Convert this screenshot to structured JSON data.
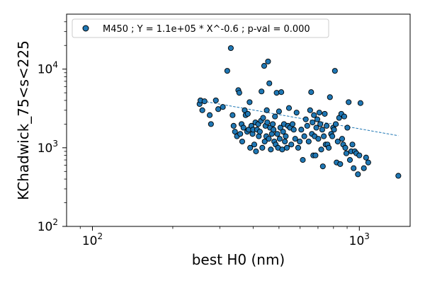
{
  "chart_data": {
    "type": "scatter",
    "title": "",
    "xlabel": "best H0 (nm)",
    "ylabel": "KChadwick_75<s<225",
    "xscale": "log",
    "yscale": "log",
    "xlim": [
      80,
      1550
    ],
    "ylim": [
      100,
      50000
    ],
    "x_ticks": [
      {
        "value": 100,
        "base": "10",
        "exp": "2"
      },
      {
        "value": 1000,
        "base": "10",
        "exp": "3"
      }
    ],
    "y_ticks": [
      {
        "value": 100,
        "base": "10",
        "exp": "2"
      },
      {
        "value": 1000,
        "base": "10",
        "exp": "3"
      },
      {
        "value": 10000,
        "base": "10",
        "exp": "4"
      }
    ],
    "grid": false,
    "legend_position": "top-left",
    "marker_color": "#1f77b4",
    "fit_color": "#1f77b4",
    "series": [
      {
        "name": "M450 ; Y = 1.1e+05 * X^-0.6 ; p-val = 0.000",
        "fit": {
          "a": 110000,
          "b": -0.6,
          "x_range": [
            250,
            1400
          ]
        },
        "points": [
          [
            252,
            3600
          ],
          [
            254,
            4000
          ],
          [
            263,
            3900
          ],
          [
            258,
            3000
          ],
          [
            275,
            2600
          ],
          [
            278,
            2000
          ],
          [
            290,
            4000
          ],
          [
            296,
            3100
          ],
          [
            308,
            3300
          ],
          [
            320,
            9500
          ],
          [
            330,
            18500
          ],
          [
            335,
            2600
          ],
          [
            338,
            1900
          ],
          [
            342,
            1600
          ],
          [
            348,
            1400
          ],
          [
            352,
            5400
          ],
          [
            355,
            5000
          ],
          [
            358,
            1500
          ],
          [
            362,
            2000
          ],
          [
            364,
            1200
          ],
          [
            368,
            1800
          ],
          [
            372,
            3000
          ],
          [
            375,
            2600
          ],
          [
            380,
            1600
          ],
          [
            382,
            2700
          ],
          [
            385,
            1700
          ],
          [
            388,
            3800
          ],
          [
            390,
            1000
          ],
          [
            394,
            1900
          ],
          [
            398,
            1500
          ],
          [
            400,
            1700
          ],
          [
            404,
            1100
          ],
          [
            408,
            2100
          ],
          [
            410,
            900
          ],
          [
            414,
            1700
          ],
          [
            418,
            2000
          ],
          [
            420,
            1400
          ],
          [
            424,
            1600
          ],
          [
            428,
            2200
          ],
          [
            430,
            5200
          ],
          [
            433,
            1000
          ],
          [
            436,
            2400
          ],
          [
            440,
            11000
          ],
          [
            442,
            1200
          ],
          [
            445,
            1900
          ],
          [
            448,
            1400
          ],
          [
            450,
            3000
          ],
          [
            452,
            2100
          ],
          [
            455,
            12500
          ],
          [
            458,
            1300
          ],
          [
            460,
            6600
          ],
          [
            463,
            1800
          ],
          [
            466,
            950
          ],
          [
            470,
            1500
          ],
          [
            474,
            2000
          ],
          [
            477,
            1700
          ],
          [
            480,
            1200
          ],
          [
            483,
            2500
          ],
          [
            486,
            1100
          ],
          [
            490,
            5000
          ],
          [
            493,
            1500
          ],
          [
            496,
            1000
          ],
          [
            500,
            2900
          ],
          [
            503,
            1300
          ],
          [
            506,
            1800
          ],
          [
            510,
            5100
          ],
          [
            514,
            950
          ],
          [
            518,
            1600
          ],
          [
            522,
            2000
          ],
          [
            526,
            1200
          ],
          [
            530,
            1400
          ],
          [
            535,
            1000
          ],
          [
            540,
            1900
          ],
          [
            545,
            3200
          ],
          [
            550,
            1800
          ],
          [
            556,
            1100
          ],
          [
            562,
            2000
          ],
          [
            568,
            1700
          ],
          [
            575,
            1300
          ],
          [
            582,
            2800
          ],
          [
            590,
            1000
          ],
          [
            598,
            1200
          ],
          [
            606,
            1700
          ],
          [
            614,
            700
          ],
          [
            622,
            1400
          ],
          [
            630,
            2300
          ],
          [
            638,
            1900
          ],
          [
            646,
            1200
          ],
          [
            654,
            3000
          ],
          [
            660,
            5100
          ],
          [
            664,
            1500
          ],
          [
            668,
            2100
          ],
          [
            672,
            800
          ],
          [
            676,
            2600
          ],
          [
            680,
            1400
          ],
          [
            685,
            800
          ],
          [
            690,
            1800
          ],
          [
            696,
            2300
          ],
          [
            702,
            1300
          ],
          [
            708,
            2800
          ],
          [
            714,
            2000
          ],
          [
            720,
            950
          ],
          [
            726,
            1700
          ],
          [
            730,
            580
          ],
          [
            736,
            1400
          ],
          [
            742,
            2700
          ],
          [
            748,
            1100
          ],
          [
            754,
            1900
          ],
          [
            760,
            1100
          ],
          [
            768,
            1000
          ],
          [
            776,
            4400
          ],
          [
            784,
            1500
          ],
          [
            792,
            1400
          ],
          [
            798,
            1800
          ],
          [
            804,
            1700
          ],
          [
            810,
            9500
          ],
          [
            816,
            2000
          ],
          [
            822,
            650
          ],
          [
            830,
            1200
          ],
          [
            840,
            2400
          ],
          [
            848,
            620
          ],
          [
            856,
            2700
          ],
          [
            862,
            1300
          ],
          [
            870,
            1100
          ],
          [
            878,
            2500
          ],
          [
            886,
            1000
          ],
          [
            894,
            850
          ],
          [
            902,
            1800
          ],
          [
            912,
            3800
          ],
          [
            922,
            700
          ],
          [
            932,
            900
          ],
          [
            942,
            1100
          ],
          [
            952,
            550
          ],
          [
            962,
            900
          ],
          [
            975,
            850
          ],
          [
            988,
            460
          ],
          [
            1000,
            800
          ],
          [
            1010,
            3700
          ],
          [
            1040,
            550
          ],
          [
            1060,
            750
          ],
          [
            1080,
            650
          ],
          [
            1400,
            440
          ]
        ]
      }
    ]
  }
}
